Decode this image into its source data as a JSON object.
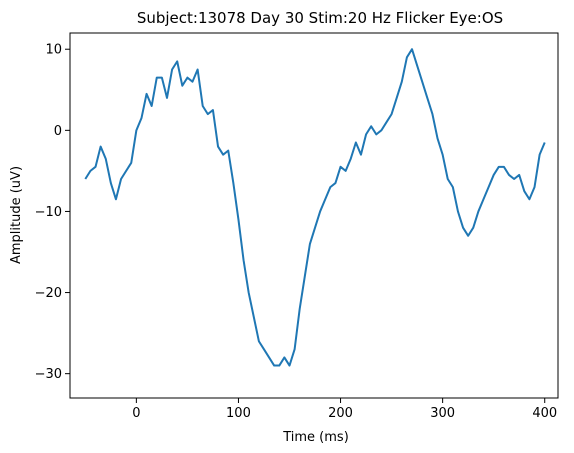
{
  "chart_data": {
    "type": "line",
    "title": "Subject:13078 Day 30 Stim:20 Hz Flicker Eye:OS",
    "xlabel": "Time (ms)",
    "ylabel": "Amplitude (uV)",
    "xlim": [
      -65,
      413
    ],
    "ylim": [
      -33,
      12
    ],
    "xticks": [
      0,
      100,
      200,
      300,
      400
    ],
    "yticks": [
      10,
      0,
      -10,
      -20,
      -30
    ],
    "xtick_labels": [
      "0",
      "100",
      "200",
      "300",
      "400"
    ],
    "ytick_labels": [
      "10",
      "0",
      "−10",
      "−20",
      "−30"
    ],
    "grid": false,
    "line_color": "#1f77b4",
    "series": [
      {
        "x": [
          -50,
          -45,
          -40,
          -35,
          -30,
          -25,
          -20,
          -15,
          -10,
          -5,
          0,
          5,
          10,
          15,
          20,
          25,
          30,
          35,
          40,
          45,
          50,
          55,
          60,
          65,
          70,
          75,
          80,
          85,
          90,
          95,
          100,
          105,
          110,
          115,
          120,
          125,
          130,
          135,
          140,
          145,
          150,
          155,
          160,
          165,
          170,
          175,
          180,
          185,
          190,
          195,
          200,
          205,
          210,
          215,
          220,
          225,
          230,
          235,
          240,
          245,
          250,
          255,
          260,
          265,
          270,
          275,
          280,
          285,
          290,
          295,
          300,
          305,
          310,
          315,
          320,
          325,
          330,
          335,
          340,
          345,
          350,
          355,
          360,
          365,
          370,
          375,
          380,
          385,
          390,
          395,
          400
        ],
        "y": [
          -6,
          -5,
          -4.5,
          -2,
          -3.5,
          -6.5,
          -8.5,
          -6,
          -5,
          -4,
          0,
          1.5,
          4.5,
          3,
          6.5,
          6.5,
          4,
          7.5,
          8.5,
          5.5,
          6.5,
          6,
          7.5,
          3,
          2,
          2.5,
          -2,
          -3,
          -2.5,
          -6.5,
          -11,
          -16,
          -20,
          -23,
          -26,
          -27,
          -28,
          -29,
          -29,
          -28,
          -29,
          -27,
          -22,
          -18,
          -14,
          -12,
          -10,
          -8.5,
          -7,
          -6.5,
          -4.5,
          -5,
          -3.5,
          -1.5,
          -3,
          -0.5,
          0.5,
          -0.5,
          0,
          1,
          2,
          4,
          6,
          9,
          10,
          8,
          6,
          4,
          2,
          -1,
          -3,
          -6,
          -7,
          -10,
          -12,
          -13,
          -12,
          -10,
          -8.5,
          -7,
          -5.5,
          -4.5,
          -4.5,
          -5.5,
          -6,
          -5.5,
          -7.5,
          -8.5,
          -7,
          -3,
          -1.5
        ]
      }
    ]
  }
}
